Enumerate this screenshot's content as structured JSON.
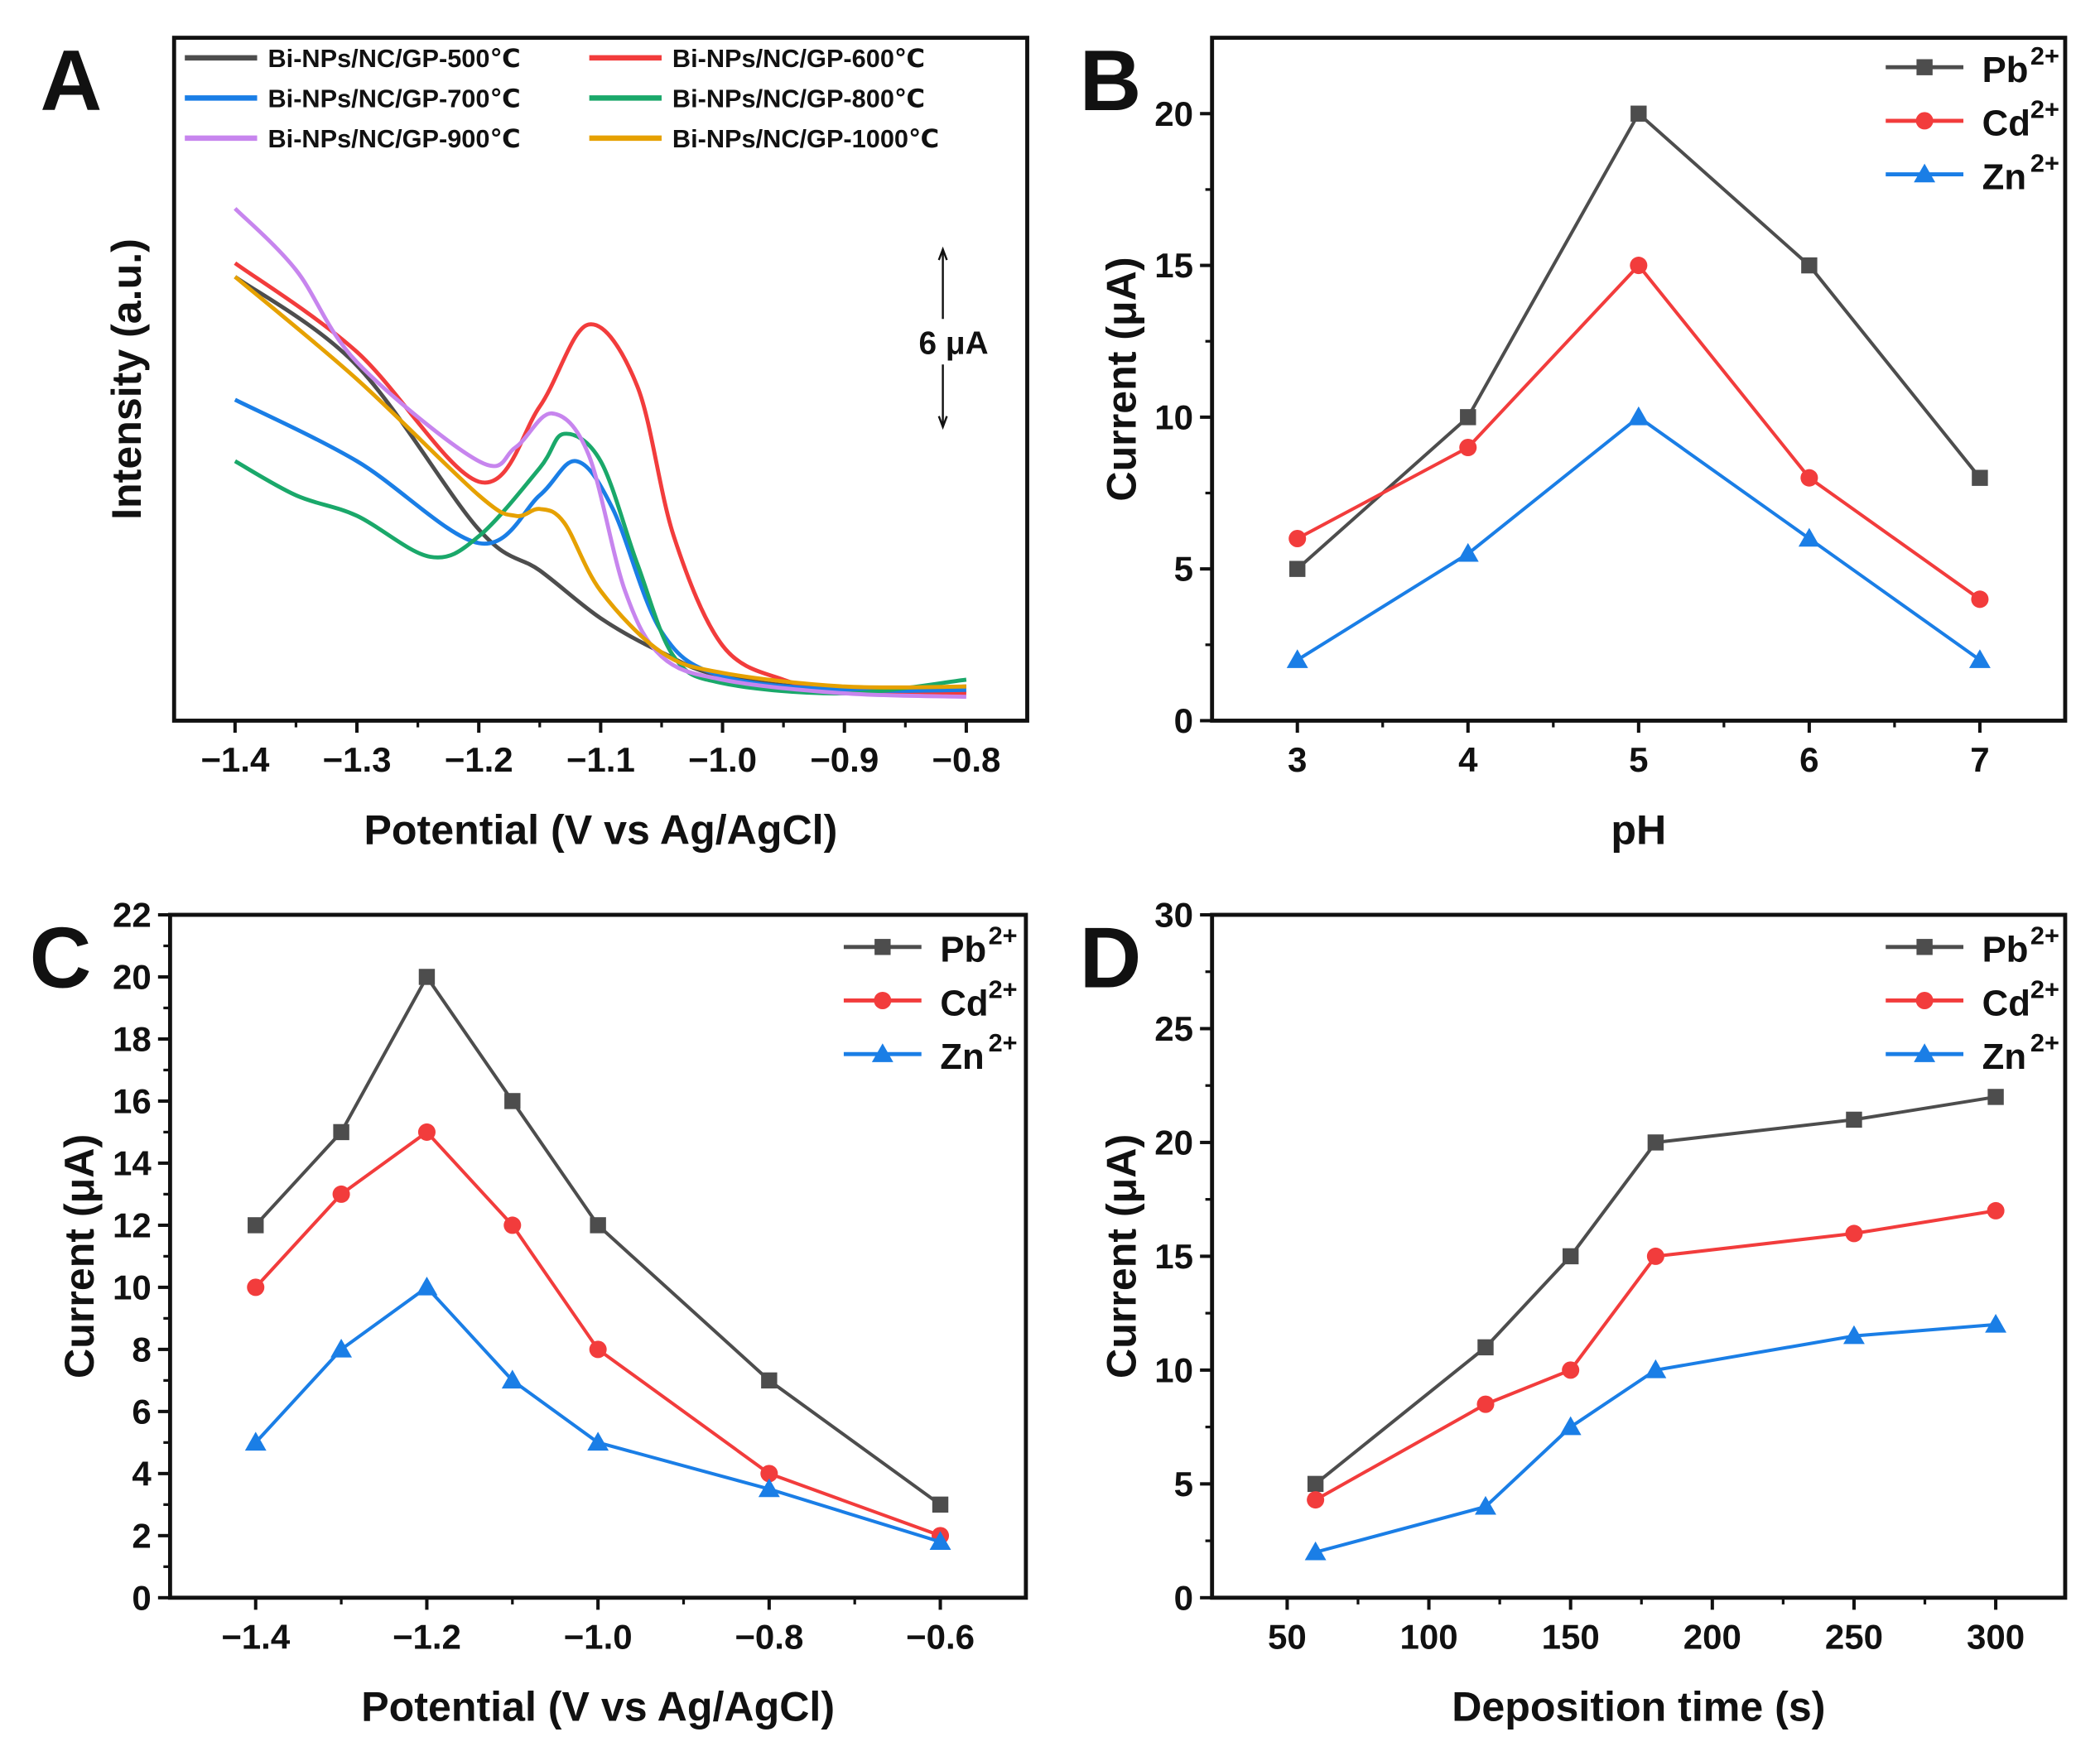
{
  "colors": {
    "Pb": "#4d4d4d",
    "Cd": "#f23c3c",
    "Zn": "#1a7ee6"
  },
  "chart_data": [
    {
      "panel": "A",
      "type": "line",
      "xlabel": "Potential (V vs Ag/AgCl)",
      "ylabel": "Intensity (a.u.)",
      "xlim": [
        -1.45,
        -0.75
      ],
      "ylim": [
        0,
        100
      ],
      "xticks": [
        "-1.4",
        "-1.3",
        "-1.2",
        "-1.1",
        "-1.0",
        "-0.9",
        "-0.8"
      ],
      "xtick_values": [
        -1.4,
        -1.3,
        -1.2,
        -1.1,
        -1.0,
        -0.9,
        -0.8
      ],
      "y_ticks_shown": false,
      "grid": false,
      "legend": "top",
      "scale_bar_label": "6 μA",
      "scale_bar_units": 26,
      "series": [
        {
          "name": "Bi-NPs/NC/GP-500℃",
          "color": "#4d4d4d",
          "x": [
            -1.4,
            -1.3,
            -1.2,
            -1.15,
            -1.1,
            -1.05,
            -1.0,
            -0.9,
            -0.8
          ],
          "y": [
            65,
            52,
            28,
            22,
            15,
            10,
            6.5,
            4.5,
            5
          ]
        },
        {
          "name": "Bi-NPs/NC/GP-600℃",
          "color": "#f23c3c",
          "x": [
            -1.4,
            -1.3,
            -1.2,
            -1.15,
            -1.11,
            -1.07,
            -1.04,
            -1.0,
            -0.95,
            -0.9,
            -0.8
          ],
          "y": [
            67,
            54,
            35,
            46,
            58,
            49,
            27,
            11,
            6,
            4.5,
            4
          ]
        },
        {
          "name": "Bi-NPs/NC/GP-700℃",
          "color": "#1a7ee6",
          "x": [
            -1.4,
            -1.3,
            -1.2,
            -1.15,
            -1.12,
            -1.09,
            -1.05,
            -1.0,
            -0.9,
            -0.8
          ],
          "y": [
            47,
            38,
            26,
            33,
            38,
            31,
            13,
            6.5,
            4.5,
            4.5
          ]
        },
        {
          "name": "Bi-NPs/NC/GP-800℃",
          "color": "#1aa86a",
          "x": [
            -1.4,
            -1.35,
            -1.3,
            -1.24,
            -1.2,
            -1.15,
            -1.13,
            -1.1,
            -1.07,
            -1.04,
            -1.0,
            -0.9,
            -0.8
          ],
          "y": [
            38,
            33,
            30,
            24,
            27,
            37,
            42,
            38,
            23,
            9.4,
            5.5,
            4,
            6
          ]
        },
        {
          "name": "Bi-NPs/NC/GP-900℃",
          "color": "#c785ee",
          "x": [
            -1.4,
            -1.35,
            -1.3,
            -1.2,
            -1.17,
            -1.14,
            -1.11,
            -1.08,
            -1.05,
            -1.0,
            -0.9,
            -0.8
          ],
          "y": [
            75,
            66,
            52.5,
            38,
            40,
            45,
            39,
            19,
            9.4,
            6,
            4,
            3.5
          ]
        },
        {
          "name": "Bi-NPs/NC/GP-1000℃",
          "color": "#e6a100",
          "x": [
            -1.4,
            -1.3,
            -1.2,
            -1.17,
            -1.15,
            -1.13,
            -1.1,
            -1.05,
            -1.0,
            -0.9,
            -0.8
          ],
          "y": [
            65,
            50,
            33,
            30,
            31,
            29,
            19,
            10,
            7,
            5,
            5
          ]
        }
      ]
    },
    {
      "panel": "B",
      "type": "line",
      "xlabel": "pH",
      "ylabel": "Current (μA)",
      "xlim": [
        2.5,
        7.5
      ],
      "ylim": [
        0,
        22.5
      ],
      "xticks": [
        "3",
        "4",
        "5",
        "6",
        "7"
      ],
      "xtick_values": [
        3,
        4,
        5,
        6,
        7
      ],
      "yticks": [
        "0",
        "5",
        "10",
        "15",
        "20"
      ],
      "ytick_values": [
        0,
        5,
        10,
        15,
        20
      ],
      "grid": false,
      "legend": "top-right",
      "x": [
        3,
        4,
        5,
        6,
        7
      ],
      "series": [
        {
          "name": "Pb",
          "sup": "2+",
          "marker": "square",
          "values": [
            5,
            10,
            20,
            15,
            8
          ]
        },
        {
          "name": "Cd",
          "sup": "2+",
          "marker": "circle",
          "values": [
            6,
            9,
            15,
            8,
            4
          ]
        },
        {
          "name": "Zn",
          "sup": "2+",
          "marker": "triangle",
          "values": [
            2,
            5.5,
            10,
            6,
            2
          ]
        }
      ]
    },
    {
      "panel": "C",
      "type": "line",
      "xlabel": "Potential (V vs Ag/AgCl)",
      "ylabel": "Current (μA)",
      "xlim": [
        -1.5,
        -0.5
      ],
      "ylim": [
        0,
        22
      ],
      "xticks": [
        "-1.4",
        "-1.2",
        "-1.0",
        "-0.8",
        "-0.6"
      ],
      "xtick_values": [
        -1.4,
        -1.2,
        -1.0,
        -0.8,
        -0.6
      ],
      "yticks": [
        "0",
        "2",
        "4",
        "6",
        "8",
        "10",
        "12",
        "14",
        "16",
        "18",
        "20",
        "22"
      ],
      "ytick_values": [
        0,
        2,
        4,
        6,
        8,
        10,
        12,
        14,
        16,
        18,
        20,
        22
      ],
      "grid": false,
      "legend": "top-right",
      "x": [
        -1.4,
        -1.3,
        -1.2,
        -1.1,
        -1.0,
        -0.8,
        -0.6
      ],
      "series": [
        {
          "name": "Pb",
          "sup": "2+",
          "marker": "square",
          "values": [
            12,
            15,
            20,
            16,
            12,
            7,
            3
          ]
        },
        {
          "name": "Cd",
          "sup": "2+",
          "marker": "circle",
          "values": [
            10,
            13,
            15,
            12,
            8,
            4,
            2
          ]
        },
        {
          "name": "Zn",
          "sup": "2+",
          "marker": "triangle",
          "values": [
            5,
            8,
            10,
            7,
            5,
            3.5,
            1.8
          ]
        }
      ]
    },
    {
      "panel": "D",
      "type": "line",
      "xlabel": "Deposition time (s)",
      "ylabel": "Current (μA)",
      "xlim": [
        23.5,
        324.5
      ],
      "ylim": [
        0,
        30
      ],
      "xticks": [
        "50",
        "100",
        "150",
        "200",
        "250",
        "300"
      ],
      "xtick_values": [
        50,
        100,
        150,
        200,
        250,
        300
      ],
      "yticks": [
        "0",
        "5",
        "10",
        "15",
        "20",
        "25",
        "30"
      ],
      "ytick_values": [
        0,
        5,
        10,
        15,
        20,
        25,
        30
      ],
      "grid": false,
      "legend": "top-right",
      "x": [
        60,
        120,
        150,
        180,
        250,
        300
      ],
      "series": [
        {
          "name": "Pb",
          "sup": "2+",
          "marker": "square",
          "values": [
            5,
            11,
            15,
            20,
            21,
            22
          ]
        },
        {
          "name": "Cd",
          "sup": "2+",
          "marker": "circle",
          "values": [
            4.3,
            8.5,
            10,
            15,
            16,
            17
          ]
        },
        {
          "name": "Zn",
          "sup": "2+",
          "marker": "triangle",
          "values": [
            2,
            4,
            7.5,
            10,
            11.5,
            12
          ]
        }
      ]
    }
  ]
}
